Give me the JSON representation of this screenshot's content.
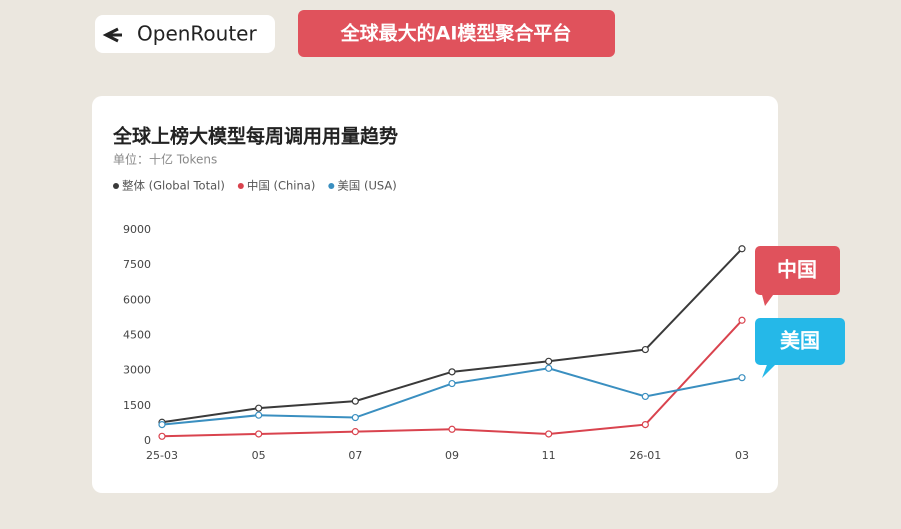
{
  "header": {
    "brand": "OpenRouter",
    "tagline": "全球最大的AI模型聚合平台"
  },
  "chart_data": {
    "type": "line",
    "title": "全球上榜大模型每周调用用量趋势",
    "subtitle": "单位：十亿 Tokens",
    "categories": [
      "25-03",
      "05",
      "07",
      "09",
      "11",
      "26-01",
      "03"
    ],
    "series": [
      {
        "name": "整体 (Global Total)",
        "color": "#3a3a3a",
        "values": [
          800,
          1400,
          1700,
          2950,
          3400,
          3900,
          8200
        ]
      },
      {
        "name": "中国 (China)",
        "color": "#d9434e",
        "values": [
          200,
          300,
          400,
          500,
          300,
          700,
          5150
        ]
      },
      {
        "name": "美国 (USA)",
        "color": "#3a8fc0",
        "values": [
          700,
          1100,
          1000,
          2450,
          3100,
          1900,
          2700
        ]
      }
    ],
    "ylim": [
      0,
      9000
    ],
    "yticks": [
      0,
      1500,
      3000,
      4500,
      6000,
      7500,
      9000
    ],
    "grid": false,
    "annotations": [
      "中国",
      "美国"
    ]
  }
}
